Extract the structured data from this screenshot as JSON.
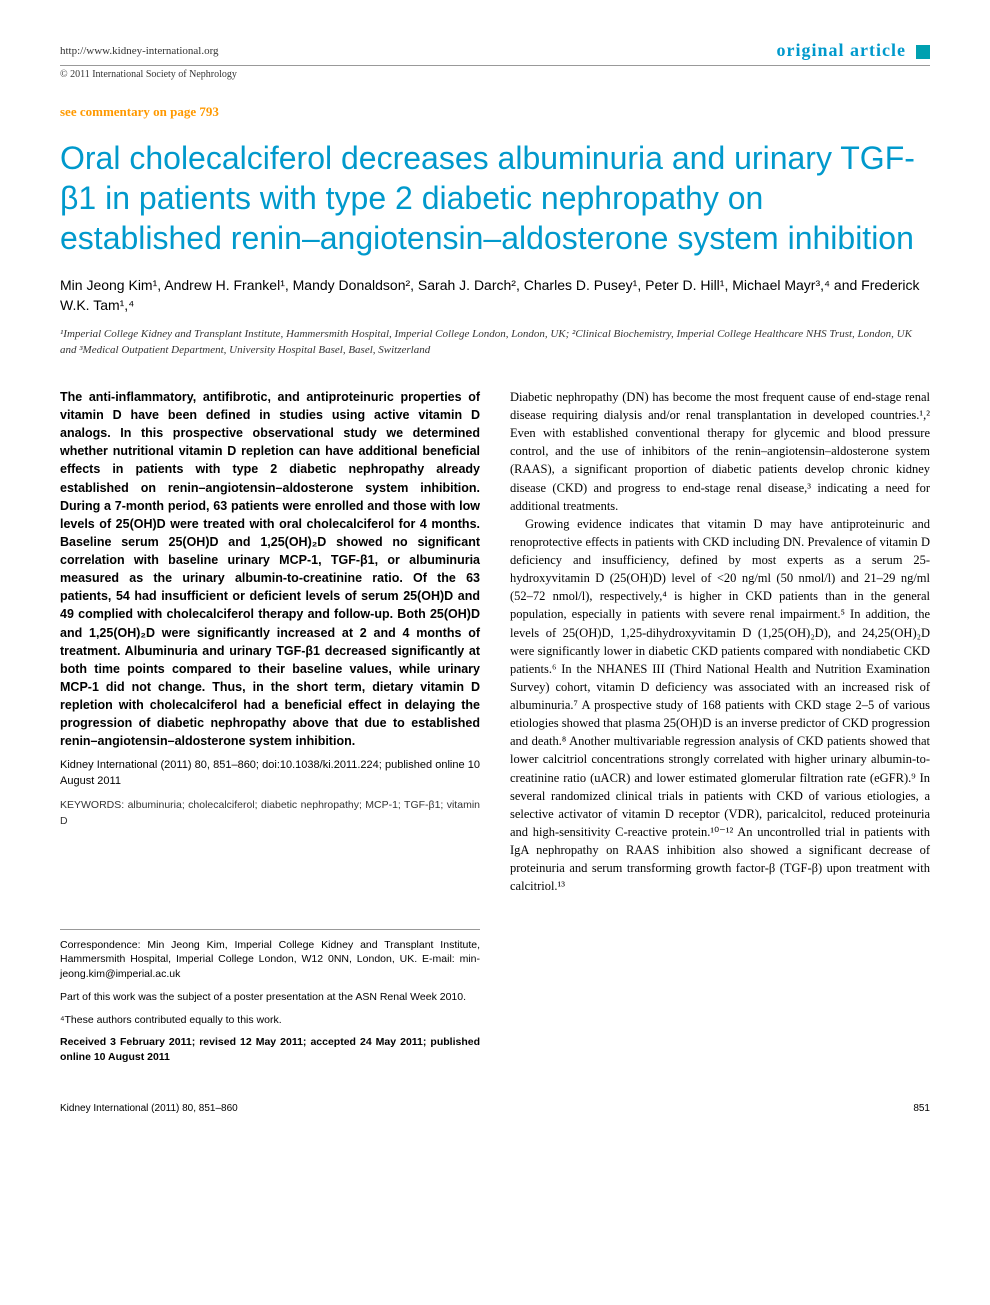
{
  "header": {
    "url": "http://www.kidney-international.org",
    "article_type": "original article",
    "copyright": "© 2011 International Society of Nephrology"
  },
  "commentary": "see commentary on page 793",
  "title": "Oral cholecalciferol decreases albuminuria and urinary TGF-β1 in patients with type 2 diabetic nephropathy on established renin–angiotensin–aldosterone system inhibition",
  "authors": "Min Jeong Kim¹, Andrew H. Frankel¹, Mandy Donaldson², Sarah J. Darch², Charles D. Pusey¹, Peter D. Hill¹, Michael Mayr³,⁴ and Frederick W.K. Tam¹,⁴",
  "affiliations": "¹Imperial College Kidney and Transplant Institute, Hammersmith Hospital, Imperial College London, London, UK; ²Clinical Biochemistry, Imperial College Healthcare NHS Trust, London, UK and ³Medical Outpatient Department, University Hospital Basel, Basel, Switzerland",
  "abstract": "The anti-inflammatory, antifibrotic, and antiproteinuric properties of vitamin D have been defined in studies using active vitamin D analogs. In this prospective observational study we determined whether nutritional vitamin D repletion can have additional beneficial effects in patients with type 2 diabetic nephropathy already established on renin–angiotensin–aldosterone system inhibition. During a 7-month period, 63 patients were enrolled and those with low levels of 25(OH)D were treated with oral cholecalciferol for 4 months. Baseline serum 25(OH)D and 1,25(OH)₂D showed no significant correlation with baseline urinary MCP-1, TGF-β1, or albuminuria measured as the urinary albumin-to-creatinine ratio. Of the 63 patients, 54 had insufficient or deficient levels of serum 25(OH)D and 49 complied with cholecalciferol therapy and follow-up. Both 25(OH)D and 1,25(OH)₂D were significantly increased at 2 and 4 months of treatment. Albuminuria and urinary TGF-β1 decreased significantly at both time points compared to their baseline values, while urinary MCP-1 did not change. Thus, in the short term, dietary vitamin D repletion with cholecalciferol had a beneficial effect in delaying the progression of diabetic nephropathy above that due to established renin–angiotensin–aldosterone system inhibition.",
  "citation": "Kidney International (2011) 80, 851–860; doi:10.1038/ki.2011.224; published online 10 August 2011",
  "keywords": "KEYWORDS: albuminuria; cholecalciferol; diabetic nephropathy; MCP-1; TGF-β1; vitamin D",
  "correspondence": "Correspondence: Min Jeong Kim, Imperial College Kidney and Transplant Institute, Hammersmith Hospital, Imperial College London, W12 0NN, London, UK. E-mail: min-jeong.kim@imperial.ac.uk",
  "poster_note": "Part of this work was the subject of a poster presentation at the ASN Renal Week 2010.",
  "equal_contrib": "⁴These authors contributed equally to this work.",
  "received": "Received 3 February 2011; revised 12 May 2011; accepted 24 May 2011; published online 10 August 2011",
  "body_p1": "Diabetic nephropathy (DN) has become the most frequent cause of end-stage renal disease requiring dialysis and/or renal transplantation in developed countries.¹,² Even with established conventional therapy for glycemic and blood pressure control, and the use of inhibitors of the renin–angiotensin–aldosterone system (RAAS), a significant proportion of diabetic patients develop chronic kidney disease (CKD) and progress to end-stage renal disease,³ indicating a need for additional treatments.",
  "body_p2": "Growing evidence indicates that vitamin D may have antiproteinuric and renoprotective effects in patients with CKD including DN. Prevalence of vitamin D deficiency and insufficiency, defined by most experts as a serum 25-hydroxyvitamin D (25(OH)D) level of <20 ng/ml (50 nmol/l) and 21–29 ng/ml (52–72 nmol/l), respectively,⁴ is higher in CKD patients than in the general population, especially in patients with severe renal impairment.⁵ In addition, the levels of 25(OH)D, 1,25-dihydroxyvitamin D (1,25(OH)₂D), and 24,25(OH)₂D were significantly lower in diabetic CKD patients compared with nondiabetic CKD patients.⁶ In the NHANES III (Third National Health and Nutrition Examination Survey) cohort, vitamin D deficiency was associated with an increased risk of albuminuria.⁷ A prospective study of 168 patients with CKD stage 2–5 of various etiologies showed that plasma 25(OH)D is an inverse predictor of CKD progression and death.⁸ Another multivariable regression analysis of CKD patients showed that lower calcitriol concentrations strongly correlated with higher urinary albumin-to-creatinine ratio (uACR) and lower estimated glomerular filtration rate (eGFR).⁹ In several randomized clinical trials in patients with CKD of various etiologies, a selective activator of vitamin D receptor (VDR), paricalcitol, reduced proteinuria and high-sensitivity C-reactive protein.¹⁰⁻¹² An uncontrolled trial in patients with IgA nephropathy on RAAS inhibition also showed a significant decrease of proteinuria and serum transforming growth factor-β (TGF-β) upon treatment with calcitriol.¹³",
  "footer": {
    "journal": "Kidney International (2011) 80, 851–860",
    "page_num": "851"
  },
  "colors": {
    "teal": "#0099cc",
    "orange": "#ff9900",
    "text": "#000000",
    "gray": "#333333"
  }
}
